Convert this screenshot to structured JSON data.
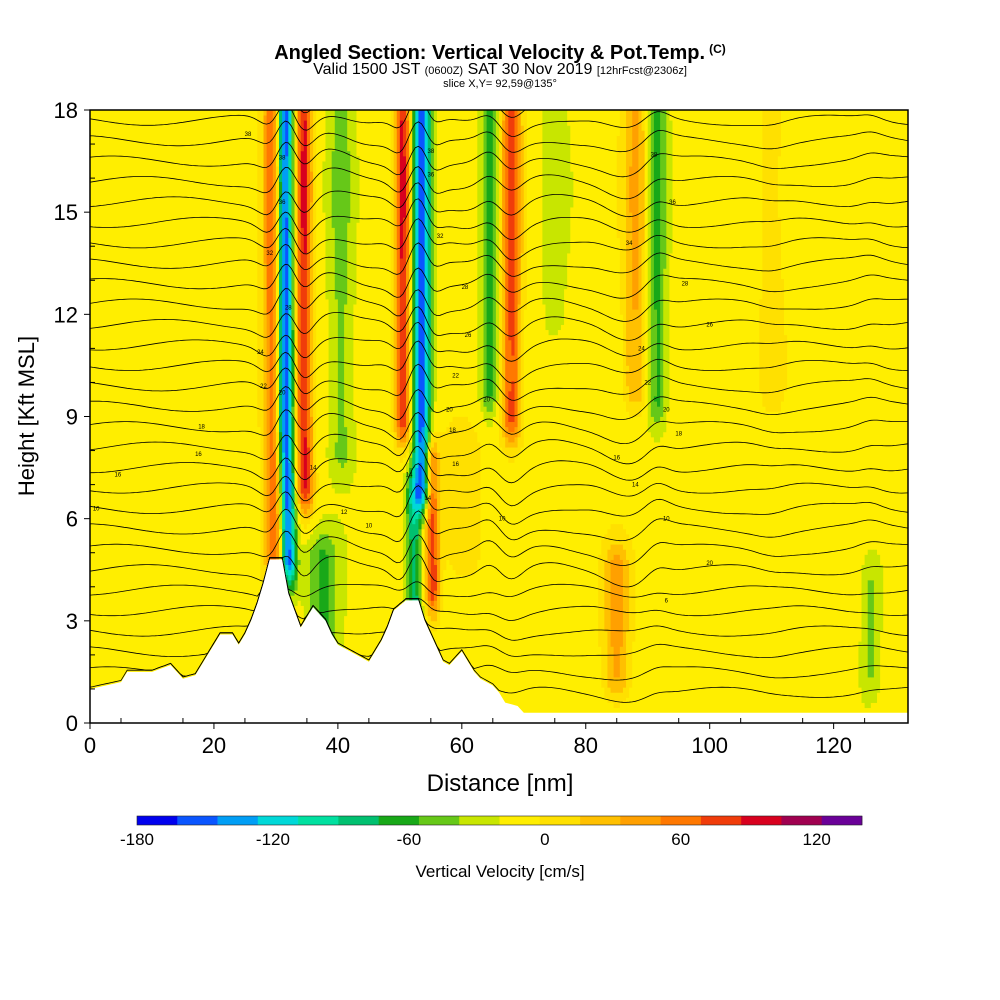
{
  "title": {
    "main": "Angled Section: Vertical Velocity & Pot.Temp.",
    "main_unit": "(C)",
    "valid_prefix": "Valid 1500 JST",
    "valid_utc": "(0600Z)",
    "valid_date": "SAT 30 Nov 2019",
    "valid_fcst": "[12hrFcst@2306z]",
    "slice": "slice X,Y= 92,59@135°"
  },
  "chart_data": {
    "type": "heatmap",
    "xlabel": "Distance [nm]",
    "ylabel": "Height [Kft MSL]",
    "xlim": [
      0,
      132
    ],
    "ylim": [
      0,
      18
    ],
    "x_ticks": [
      0,
      20,
      40,
      60,
      80,
      100,
      120
    ],
    "y_ticks": [
      0,
      3,
      6,
      9,
      12,
      15,
      18
    ],
    "grid": false,
    "colorbar": {
      "label": "Vertical Velocity [cm/s]",
      "min": -180,
      "max": 140,
      "step": 20,
      "tick_values": [
        -180,
        -120,
        -60,
        0,
        60,
        120
      ],
      "colors": [
        "#0000ee",
        "#0a55ff",
        "#009ef5",
        "#00d8d8",
        "#00e0a0",
        "#00c070",
        "#18a818",
        "#66c818",
        "#c8e600",
        "#ffee00",
        "#ffe000",
        "#ffc000",
        "#ffa000",
        "#ff7800",
        "#f03c0a",
        "#d8001e",
        "#a00050",
        "#6a0098"
      ]
    },
    "velocity_features": [
      {
        "x": 29.5,
        "peak": 95,
        "sigma": 1.6,
        "ybot": 4.5,
        "ytop": 18
      },
      {
        "x": 31.5,
        "peak": -175,
        "sigma": 1.3,
        "ybot": 4.8,
        "ytop": 18
      },
      {
        "x": 34.5,
        "peak": 115,
        "sigma": 1.4,
        "ybot": 7.0,
        "ytop": 18
      },
      {
        "x": 37.0,
        "peak": -50,
        "sigma": 2.5,
        "ybot": 2.5,
        "ytop": 4.8
      },
      {
        "x": 40.5,
        "peak": -35,
        "sigma": 2.0,
        "ybot": 8.0,
        "ytop": 18
      },
      {
        "x": 50.5,
        "peak": 115,
        "sigma": 1.3,
        "ybot": 9.0,
        "ytop": 18
      },
      {
        "x": 53.5,
        "peak": -160,
        "sigma": 1.4,
        "ybot": 7.0,
        "ytop": 18
      },
      {
        "x": 52.0,
        "peak": -80,
        "sigma": 1.3,
        "ybot": 3.5,
        "ytop": 6.5
      },
      {
        "x": 55.0,
        "peak": 110,
        "sigma": 1.2,
        "ybot": 4.0,
        "ytop": 7.5
      },
      {
        "x": 64.5,
        "peak": -60,
        "sigma": 1.4,
        "ybot": 10.0,
        "ytop": 18
      },
      {
        "x": 68.0,
        "peak": 100,
        "sigma": 1.6,
        "ybot": 9.0,
        "ytop": 18
      },
      {
        "x": 60.0,
        "peak": 30,
        "sigma": 3.0,
        "ybot": 5.0,
        "ytop": 8.0
      },
      {
        "x": 88.0,
        "peak": 55,
        "sigma": 2.0,
        "ybot": 10.0,
        "ytop": 18
      },
      {
        "x": 91.5,
        "peak": -55,
        "sigma": 1.5,
        "ybot": 9.5,
        "ytop": 18
      },
      {
        "x": 85.0,
        "peak": 60,
        "sigma": 2.2,
        "ybot": 1.5,
        "ytop": 4.5
      },
      {
        "x": 75.0,
        "peak": -20,
        "sigma": 2.0,
        "ybot": 12.0,
        "ytop": 18
      },
      {
        "x": 110.0,
        "peak": 25,
        "sigma": 2.0,
        "ybot": 10.0,
        "ytop": 18
      },
      {
        "x": 126.0,
        "peak": -30,
        "sigma": 1.5,
        "ybot": 1.5,
        "ytop": 4.0
      }
    ],
    "terrain": [
      [
        0,
        1.0
      ],
      [
        5,
        1.2
      ],
      [
        6,
        1.5
      ],
      [
        10,
        1.5
      ],
      [
        13,
        1.7
      ],
      [
        15,
        1.3
      ],
      [
        17,
        1.4
      ],
      [
        18,
        1.7
      ],
      [
        19,
        2.0
      ],
      [
        20,
        2.3
      ],
      [
        21,
        2.6
      ],
      [
        23,
        2.6
      ],
      [
        24,
        2.3
      ],
      [
        25,
        2.6
      ],
      [
        26,
        3.0
      ],
      [
        27,
        3.5
      ],
      [
        28,
        4.1
      ],
      [
        29,
        4.8
      ],
      [
        31,
        4.8
      ],
      [
        32,
        3.8
      ],
      [
        33,
        3.3
      ],
      [
        34,
        2.8
      ],
      [
        35,
        3.1
      ],
      [
        36,
        3.4
      ],
      [
        38,
        3.0
      ],
      [
        39,
        2.6
      ],
      [
        40,
        2.3
      ],
      [
        42,
        2.1
      ],
      [
        43,
        2.0
      ],
      [
        45,
        1.8
      ],
      [
        46,
        2.1
      ],
      [
        47,
        2.4
      ],
      [
        48,
        2.8
      ],
      [
        49,
        3.3
      ],
      [
        51,
        3.6
      ],
      [
        53,
        3.6
      ],
      [
        54,
        3.0
      ],
      [
        55,
        2.6
      ],
      [
        56,
        2.2
      ],
      [
        57,
        1.8
      ],
      [
        58,
        1.7
      ],
      [
        60,
        2.1
      ],
      [
        61,
        1.8
      ],
      [
        62,
        1.5
      ],
      [
        63,
        1.3
      ],
      [
        65,
        1.1
      ],
      [
        66,
        0.9
      ],
      [
        67,
        0.6
      ],
      [
        69,
        0.5
      ],
      [
        70,
        0.3
      ],
      [
        132,
        0.3
      ]
    ],
    "potential_temperature_contours": {
      "base_c": -2,
      "interval_c": 2,
      "count": 30
    },
    "contour_labels": [
      {
        "x": 1.0,
        "y": 6.3,
        "text": "10"
      },
      {
        "x": 4.5,
        "y": 7.3,
        "text": "16"
      },
      {
        "x": 18.0,
        "y": 8.7,
        "text": "18"
      },
      {
        "x": 17.5,
        "y": 7.9,
        "text": "16"
      },
      {
        "x": 25.5,
        "y": 17.3,
        "text": "38"
      },
      {
        "x": 27.5,
        "y": 10.9,
        "text": "24"
      },
      {
        "x": 28.0,
        "y": 9.9,
        "text": "22"
      },
      {
        "x": 29.0,
        "y": 13.8,
        "text": "32"
      },
      {
        "x": 31.0,
        "y": 16.6,
        "text": "38"
      },
      {
        "x": 31.0,
        "y": 15.3,
        "text": "36"
      },
      {
        "x": 31.0,
        "y": 9.7,
        "text": "20"
      },
      {
        "x": 32.0,
        "y": 12.2,
        "text": "28"
      },
      {
        "x": 36.0,
        "y": 7.5,
        "text": "14"
      },
      {
        "x": 41.0,
        "y": 6.2,
        "text": "12"
      },
      {
        "x": 45.0,
        "y": 5.8,
        "text": "10"
      },
      {
        "x": 51.5,
        "y": 7.3,
        "text": "14"
      },
      {
        "x": 54.5,
        "y": 6.6,
        "text": "14"
      },
      {
        "x": 55.0,
        "y": 16.8,
        "text": "38"
      },
      {
        "x": 55.0,
        "y": 16.1,
        "text": "36"
      },
      {
        "x": 56.5,
        "y": 14.3,
        "text": "32"
      },
      {
        "x": 58.0,
        "y": 9.2,
        "text": "20"
      },
      {
        "x": 58.5,
        "y": 8.6,
        "text": "18"
      },
      {
        "x": 59.0,
        "y": 7.6,
        "text": "16"
      },
      {
        "x": 59.0,
        "y": 10.2,
        "text": "22"
      },
      {
        "x": 60.5,
        "y": 12.8,
        "text": "28"
      },
      {
        "x": 61.0,
        "y": 11.4,
        "text": "26"
      },
      {
        "x": 64.0,
        "y": 9.5,
        "text": "20"
      },
      {
        "x": 66.5,
        "y": 6.0,
        "text": "10"
      },
      {
        "x": 87.0,
        "y": 14.1,
        "text": "34"
      },
      {
        "x": 85.0,
        "y": 7.8,
        "text": "16"
      },
      {
        "x": 88.0,
        "y": 7.0,
        "text": "14"
      },
      {
        "x": 89.0,
        "y": 11.0,
        "text": "24"
      },
      {
        "x": 90.0,
        "y": 10.0,
        "text": "22"
      },
      {
        "x": 91.0,
        "y": 16.7,
        "text": "38"
      },
      {
        "x": 94.0,
        "y": 15.3,
        "text": "36"
      },
      {
        "x": 96.0,
        "y": 12.9,
        "text": "28"
      },
      {
        "x": 93.0,
        "y": 9.2,
        "text": "20"
      },
      {
        "x": 95.0,
        "y": 8.5,
        "text": "18"
      },
      {
        "x": 93.0,
        "y": 6.0,
        "text": "10"
      },
      {
        "x": 100.0,
        "y": 11.7,
        "text": "26"
      },
      {
        "x": 100.0,
        "y": 4.7,
        "text": "20"
      },
      {
        "x": 93.0,
        "y": 3.6,
        "text": "6"
      }
    ]
  }
}
